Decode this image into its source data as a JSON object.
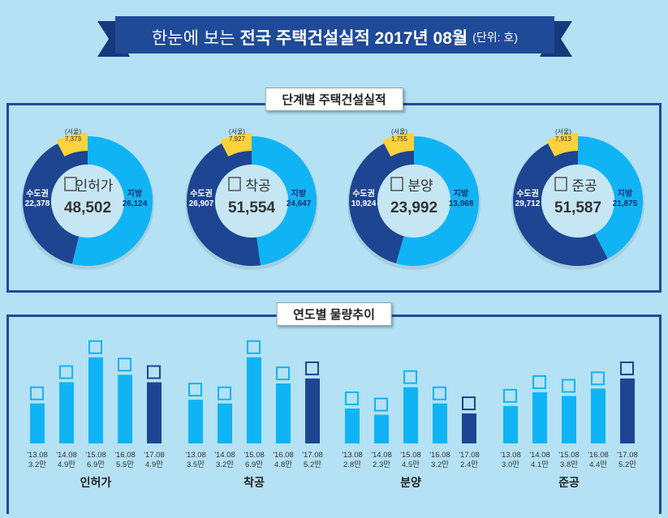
{
  "title": {
    "prefix": "한눈에 보는",
    "main": "전국 주택건설실적 2017년 08월",
    "unit": "(단위: 호)"
  },
  "colors": {
    "metro": "#1d4592",
    "local": "#10b4f5",
    "seoul": "#fdd23a",
    "bar_past": "#10b4f5",
    "bar_current": "#1d4592",
    "frame": "#1f4a98"
  },
  "sections": {
    "stage": "단계별 주택건설실적",
    "trend": "연도별 물량추이"
  },
  "chart_data": [
    {
      "type": "pie",
      "title": "단계별 주택건설실적",
      "donuts": [
        {
          "label": "인허가",
          "icon": "document-pencil-icon",
          "total": "48,502",
          "metro_label": "수도권",
          "metro": "22,378",
          "local_label": "지방",
          "local": "26,124",
          "seoul_label": "(서울)",
          "seoul": "7,373",
          "metro_v": 22378,
          "local_v": 26124
        },
        {
          "label": "착공",
          "icon": "crane-icon",
          "total": "51,554",
          "metro_label": "수도권",
          "metro": "26,907",
          "local_label": "지방",
          "local": "24,647",
          "seoul_label": "(서울)",
          "seoul": "7,927",
          "metro_v": 26907,
          "local_v": 24647
        },
        {
          "label": "분양",
          "icon": "presentation-icon",
          "total": "23,992",
          "metro_label": "수도권",
          "metro": "10,924",
          "local_label": "지방",
          "local": "13,068",
          "seoul_label": "(서울)",
          "seoul": "1,755",
          "metro_v": 10924,
          "local_v": 13068
        },
        {
          "label": "준공",
          "icon": "building-icon",
          "total": "51,587",
          "metro_label": "수도권",
          "metro": "29,712",
          "local_label": "지방",
          "local": "21,875",
          "seoul_label": "(서울)",
          "seoul": "7,913",
          "metro_v": 29712,
          "local_v": 21875
        }
      ]
    },
    {
      "type": "bar",
      "title": "연도별 물량추이",
      "groups": [
        {
          "name": "인허가",
          "categories": [
            "'13.08",
            "'14.08",
            "'15.08",
            "'16.08",
            "'17.08"
          ],
          "labels": [
            "3.2만",
            "4.9만",
            "6.9만",
            "5.5만",
            "4.9만"
          ],
          "values": [
            3.2,
            4.9,
            6.9,
            5.5,
            4.9
          ]
        },
        {
          "name": "착공",
          "categories": [
            "'13.08",
            "'14.08",
            "'15.08",
            "'16.08",
            "'17.08"
          ],
          "labels": [
            "3.5만",
            "3.2만",
            "6.9만",
            "4.8만",
            "5.2만"
          ],
          "values": [
            3.5,
            3.2,
            6.9,
            4.8,
            5.2
          ]
        },
        {
          "name": "분양",
          "categories": [
            "'13.08",
            "'14.08",
            "'15.08",
            "'16.08",
            "'17.08"
          ],
          "labels": [
            "2.8만",
            "2.3만",
            "4.5만",
            "3.2만",
            "2.4만"
          ],
          "values": [
            2.8,
            2.3,
            4.5,
            3.2,
            2.4
          ]
        },
        {
          "name": "준공",
          "categories": [
            "'13.08",
            "'14.08",
            "'15.08",
            "'16.08",
            "'17.08"
          ],
          "labels": [
            "3.0만",
            "4.1만",
            "3.8만",
            "4.4만",
            "5.2만"
          ],
          "values": [
            3.0,
            4.1,
            3.8,
            4.4,
            5.2
          ]
        }
      ]
    }
  ]
}
